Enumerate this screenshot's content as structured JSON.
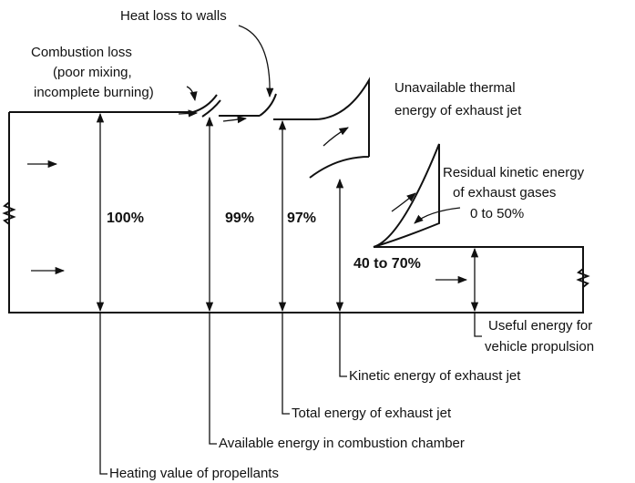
{
  "labels": {
    "heat_loss": "Heat loss to walls",
    "combustion_loss": [
      "Combustion loss",
      "(poor mixing,",
      "incomplete burning)"
    ],
    "unavailable_thermal": [
      "Unavailable thermal",
      "energy of exhaust jet"
    ],
    "residual_kinetic": [
      "Residual kinetic energy",
      "of exhaust gases",
      "0 to 50%"
    ],
    "percentages": [
      "100%",
      "99%",
      "97%",
      "40 to 70%"
    ],
    "useful_energy": [
      "Useful energy for",
      "vehicle propulsion"
    ],
    "kinetic_energy": "Kinetic energy of exhaust jet",
    "total_energy": "Total energy of exhaust jet",
    "available_energy": "Available energy in combustion chamber",
    "heating_value": "Heating value of propellants"
  }
}
